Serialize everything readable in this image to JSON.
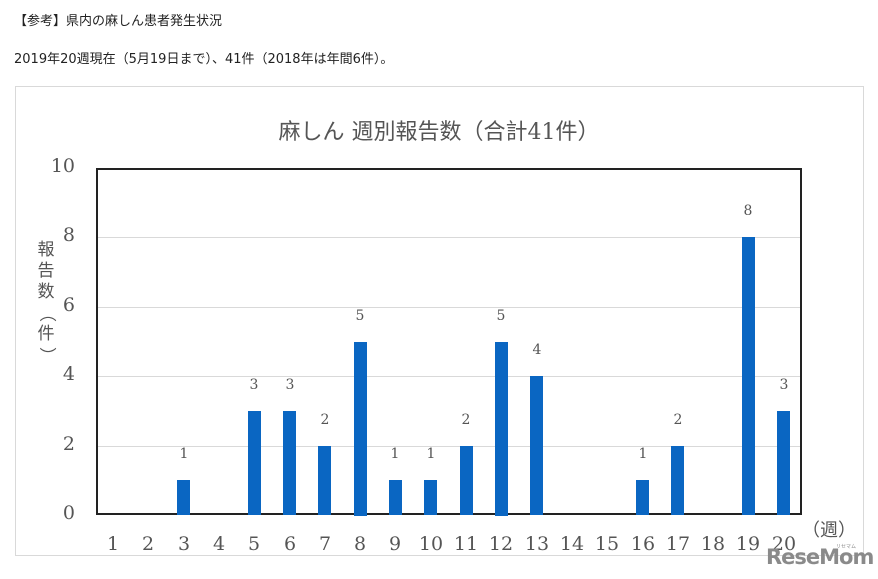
{
  "page": {
    "heading": "【参考】県内の麻しん患者発生状況",
    "summary": "2019年20週現在（5月19日まで）、41件（2018年は年間6件）。"
  },
  "chart_data": {
    "type": "bar",
    "title": "麻しん 週別報告数（合計41件）",
    "xlabel": "（週）",
    "ylabel": "報告数（件）",
    "ylim": [
      0,
      10
    ],
    "yticks": [
      0,
      2,
      4,
      6,
      8,
      10
    ],
    "grid": true,
    "legend": null,
    "bar_color": "#0a66c2",
    "categories": [
      "1",
      "2",
      "3",
      "4",
      "5",
      "6",
      "7",
      "8",
      "9",
      "10",
      "11",
      "12",
      "13",
      "14",
      "15",
      "16",
      "17",
      "18",
      "19",
      "20"
    ],
    "values": [
      0,
      0,
      1,
      0,
      3,
      3,
      2,
      5,
      1,
      1,
      2,
      5,
      4,
      0,
      0,
      1,
      2,
      0,
      8,
      3
    ],
    "data_labels": [
      "",
      "",
      "1",
      "",
      "3",
      "3",
      "2",
      "5",
      "1",
      "1",
      "2",
      "5",
      "4",
      "",
      "",
      "1",
      "2",
      "",
      "8",
      "3"
    ],
    "total": 41
  },
  "watermark": {
    "text": "ReseMom",
    "sub": "リセマム"
  }
}
